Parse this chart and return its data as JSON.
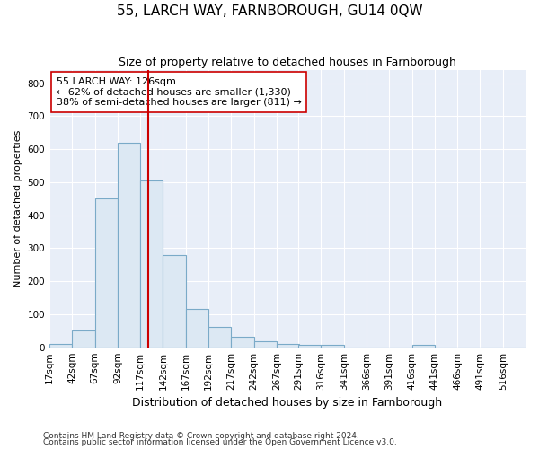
{
  "title": "55, LARCH WAY, FARNBOROUGH, GU14 0QW",
  "subtitle": "Size of property relative to detached houses in Farnborough",
  "xlabel": "Distribution of detached houses by size in Farnborough",
  "ylabel": "Number of detached properties",
  "bar_color": "#dce8f3",
  "bar_edge_color": "#7aaac8",
  "background_color": "#e8eef8",
  "bin_labels": [
    "17sqm",
    "42sqm",
    "67sqm",
    "92sqm",
    "117sqm",
    "142sqm",
    "167sqm",
    "192sqm",
    "217sqm",
    "242sqm",
    "267sqm",
    "291sqm",
    "316sqm",
    "341sqm",
    "366sqm",
    "391sqm",
    "416sqm",
    "441sqm",
    "466sqm",
    "491sqm",
    "516sqm"
  ],
  "bar_values": [
    10,
    52,
    450,
    620,
    505,
    280,
    115,
    62,
    32,
    18,
    10,
    8,
    8,
    0,
    0,
    0,
    8,
    0,
    0,
    0,
    0
  ],
  "bin_starts": [
    17,
    42,
    67,
    92,
    117,
    142,
    167,
    192,
    217,
    242,
    267,
    291,
    316,
    341,
    366,
    391,
    416,
    441,
    466,
    491,
    516
  ],
  "bin_width": 25,
  "property_size": 126,
  "red_line_color": "#cc0000",
  "annotation_line1": "55 LARCH WAY: 126sqm",
  "annotation_line2": "← 62% of detached houses are smaller (1,330)",
  "annotation_line3": "38% of semi-detached houses are larger (811) →",
  "ylim": [
    0,
    840
  ],
  "yticks": [
    0,
    100,
    200,
    300,
    400,
    500,
    600,
    700,
    800
  ],
  "footnote1": "Contains HM Land Registry data © Crown copyright and database right 2024.",
  "footnote2": "Contains public sector information licensed under the Open Government Licence v3.0.",
  "title_fontsize": 11,
  "subtitle_fontsize": 9,
  "xlabel_fontsize": 9,
  "ylabel_fontsize": 8,
  "tick_fontsize": 7.5,
  "annot_fontsize": 8
}
